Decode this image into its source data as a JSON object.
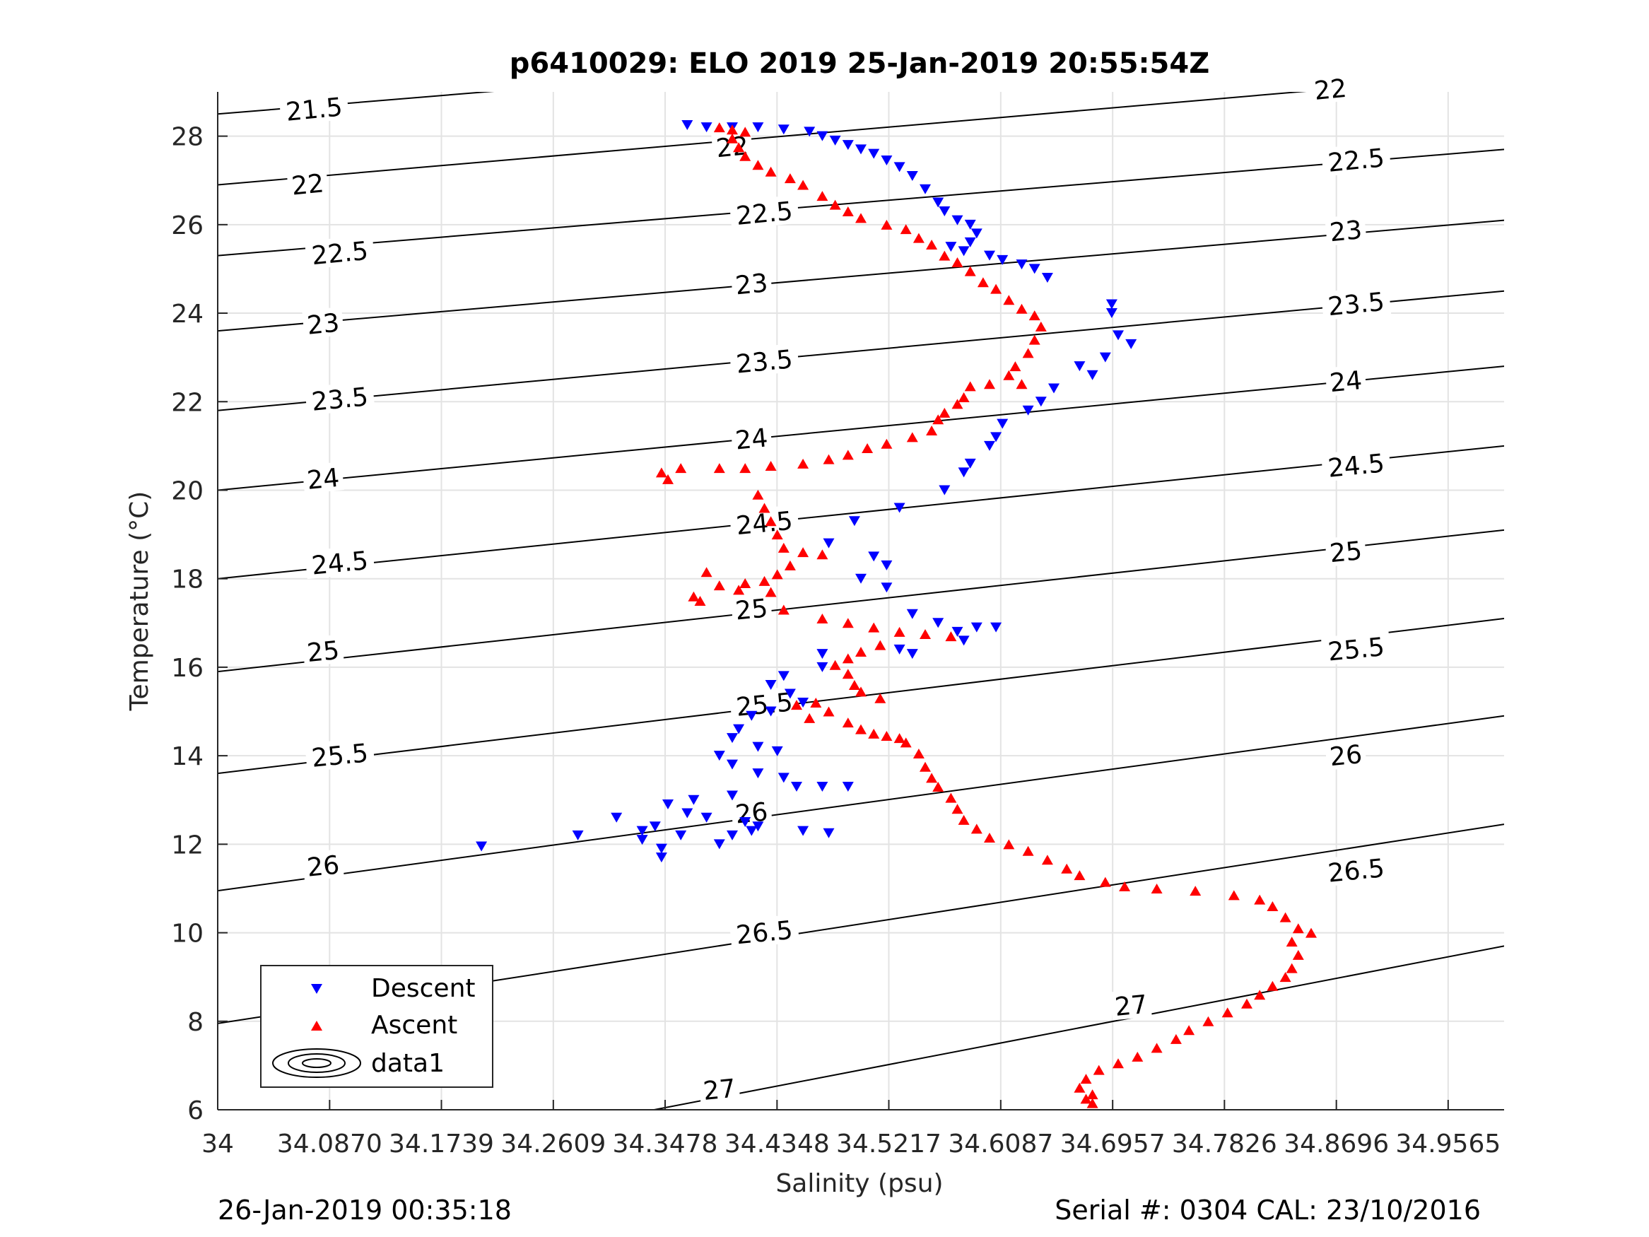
{
  "chart_data": {
    "type": "scatter",
    "title": "p6410029: ELO 2019 25-Jan-2019 20:55:54Z",
    "xlabel": "Salinity (psu)",
    "ylabel": "Temperature (°C)",
    "xlim": [
      34.0,
      35.0
    ],
    "ylim": [
      6,
      29
    ],
    "x_ticks": [
      "34",
      "34.0870",
      "34.1739",
      "34.2609",
      "34.3478",
      "34.4348",
      "34.5217",
      "34.6087",
      "34.6957",
      "34.7826",
      "34.8696",
      "34.9565"
    ],
    "y_ticks": [
      "6",
      "8",
      "10",
      "12",
      "14",
      "16",
      "18",
      "20",
      "22",
      "24",
      "26",
      "28"
    ],
    "grid": true,
    "legend_placement": "bottom-left",
    "density_contours": {
      "name": "data1",
      "levels": [
        "21.5",
        "22",
        "22.5",
        "23",
        "23.5",
        "24",
        "24.5",
        "25",
        "25.5",
        "26",
        "26.5",
        "27"
      ],
      "left_edge_T": [
        28.5,
        26.9,
        25.3,
        23.6,
        21.8,
        20.0,
        18.0,
        15.9,
        13.6,
        10.95,
        7.95,
        4.1
      ],
      "right_edge_T": [
        30.9,
        29.4,
        27.7,
        26.1,
        24.5,
        22.8,
        21.0,
        19.1,
        17.1,
        14.9,
        12.45,
        9.7
      ]
    },
    "series": [
      {
        "name": "Descent",
        "color": "#0000ff",
        "marker": "triangle-down",
        "points": [
          [
            34.365,
            28.25
          ],
          [
            34.38,
            28.2
          ],
          [
            34.4,
            28.2
          ],
          [
            34.42,
            28.2
          ],
          [
            34.44,
            28.15
          ],
          [
            34.46,
            28.1
          ],
          [
            34.47,
            28.0
          ],
          [
            34.48,
            27.9
          ],
          [
            34.49,
            27.8
          ],
          [
            34.5,
            27.7
          ],
          [
            34.51,
            27.6
          ],
          [
            34.52,
            27.45
          ],
          [
            34.53,
            27.3
          ],
          [
            34.54,
            27.1
          ],
          [
            34.55,
            26.8
          ],
          [
            34.56,
            26.5
          ],
          [
            34.565,
            26.3
          ],
          [
            34.575,
            26.1
          ],
          [
            34.585,
            26.0
          ],
          [
            34.59,
            25.8
          ],
          [
            34.585,
            25.6
          ],
          [
            34.57,
            25.5
          ],
          [
            34.58,
            25.4
          ],
          [
            34.6,
            25.3
          ],
          [
            34.61,
            25.2
          ],
          [
            34.625,
            25.1
          ],
          [
            34.635,
            25.0
          ],
          [
            34.645,
            24.8
          ],
          [
            34.695,
            24.2
          ],
          [
            34.695,
            24.0
          ],
          [
            34.7,
            23.5
          ],
          [
            34.71,
            23.3
          ],
          [
            34.69,
            23.0
          ],
          [
            34.67,
            22.8
          ],
          [
            34.68,
            22.6
          ],
          [
            34.65,
            22.3
          ],
          [
            34.64,
            22.0
          ],
          [
            34.63,
            21.8
          ],
          [
            34.61,
            21.5
          ],
          [
            34.605,
            21.2
          ],
          [
            34.6,
            21.0
          ],
          [
            34.585,
            20.6
          ],
          [
            34.58,
            20.4
          ],
          [
            34.565,
            20.0
          ],
          [
            34.53,
            19.6
          ],
          [
            34.495,
            19.3
          ],
          [
            34.475,
            18.8
          ],
          [
            34.51,
            18.5
          ],
          [
            34.52,
            18.3
          ],
          [
            34.5,
            18.0
          ],
          [
            34.52,
            17.8
          ],
          [
            34.54,
            17.2
          ],
          [
            34.56,
            17.0
          ],
          [
            34.575,
            16.8
          ],
          [
            34.58,
            16.6
          ],
          [
            34.59,
            16.9
          ],
          [
            34.605,
            16.9
          ],
          [
            34.53,
            16.4
          ],
          [
            34.54,
            16.3
          ],
          [
            34.47,
            16.3
          ],
          [
            34.47,
            16.0
          ],
          [
            34.44,
            15.8
          ],
          [
            34.43,
            15.6
          ],
          [
            34.445,
            15.4
          ],
          [
            34.455,
            15.2
          ],
          [
            34.43,
            15.0
          ],
          [
            34.415,
            14.9
          ],
          [
            34.405,
            14.6
          ],
          [
            34.4,
            14.4
          ],
          [
            34.42,
            14.2
          ],
          [
            34.435,
            14.1
          ],
          [
            34.39,
            14.0
          ],
          [
            34.4,
            13.8
          ],
          [
            34.42,
            13.6
          ],
          [
            34.44,
            13.5
          ],
          [
            34.45,
            13.3
          ],
          [
            34.47,
            13.3
          ],
          [
            34.49,
            13.3
          ],
          [
            34.4,
            13.1
          ],
          [
            34.37,
            13.0
          ],
          [
            34.35,
            12.9
          ],
          [
            34.365,
            12.7
          ],
          [
            34.38,
            12.6
          ],
          [
            34.41,
            12.5
          ],
          [
            34.34,
            12.4
          ],
          [
            34.33,
            12.3
          ],
          [
            34.31,
            12.6
          ],
          [
            34.36,
            12.2
          ],
          [
            34.4,
            12.2
          ],
          [
            34.42,
            12.4
          ],
          [
            34.39,
            12.0
          ],
          [
            34.415,
            12.3
          ],
          [
            34.455,
            12.3
          ],
          [
            34.475,
            12.25
          ],
          [
            34.33,
            12.1
          ],
          [
            34.345,
            11.9
          ],
          [
            34.345,
            11.7
          ],
          [
            34.28,
            12.2
          ],
          [
            34.205,
            11.95
          ]
        ]
      },
      {
        "name": "Ascent",
        "color": "#ff0000",
        "marker": "triangle-up",
        "points": [
          [
            34.39,
            28.2
          ],
          [
            34.4,
            28.15
          ],
          [
            34.41,
            28.1
          ],
          [
            34.4,
            27.95
          ],
          [
            34.405,
            27.75
          ],
          [
            34.41,
            27.55
          ],
          [
            34.42,
            27.35
          ],
          [
            34.43,
            27.2
          ],
          [
            34.445,
            27.05
          ],
          [
            34.455,
            26.9
          ],
          [
            34.47,
            26.65
          ],
          [
            34.48,
            26.45
          ],
          [
            34.49,
            26.3
          ],
          [
            34.5,
            26.15
          ],
          [
            34.52,
            26.0
          ],
          [
            34.535,
            25.9
          ],
          [
            34.545,
            25.7
          ],
          [
            34.555,
            25.55
          ],
          [
            34.565,
            25.3
          ],
          [
            34.575,
            25.15
          ],
          [
            34.585,
            24.95
          ],
          [
            34.595,
            24.7
          ],
          [
            34.605,
            24.55
          ],
          [
            34.615,
            24.3
          ],
          [
            34.625,
            24.1
          ],
          [
            34.635,
            23.95
          ],
          [
            34.64,
            23.7
          ],
          [
            34.635,
            23.4
          ],
          [
            34.63,
            23.1
          ],
          [
            34.62,
            22.8
          ],
          [
            34.615,
            22.6
          ],
          [
            34.625,
            22.4
          ],
          [
            34.6,
            22.4
          ],
          [
            34.585,
            22.35
          ],
          [
            34.58,
            22.1
          ],
          [
            34.575,
            21.95
          ],
          [
            34.565,
            21.75
          ],
          [
            34.56,
            21.6
          ],
          [
            34.555,
            21.35
          ],
          [
            34.54,
            21.2
          ],
          [
            34.52,
            21.05
          ],
          [
            34.505,
            20.95
          ],
          [
            34.49,
            20.8
          ],
          [
            34.475,
            20.7
          ],
          [
            34.455,
            20.6
          ],
          [
            34.43,
            20.55
          ],
          [
            34.41,
            20.5
          ],
          [
            34.39,
            20.5
          ],
          [
            34.36,
            20.5
          ],
          [
            34.345,
            20.4
          ],
          [
            34.35,
            20.25
          ],
          [
            34.42,
            19.9
          ],
          [
            34.425,
            19.6
          ],
          [
            34.43,
            19.3
          ],
          [
            34.435,
            19.0
          ],
          [
            34.44,
            18.7
          ],
          [
            34.455,
            18.6
          ],
          [
            34.47,
            18.55
          ],
          [
            34.445,
            18.3
          ],
          [
            34.435,
            18.1
          ],
          [
            34.425,
            17.95
          ],
          [
            34.41,
            17.9
          ],
          [
            34.405,
            17.75
          ],
          [
            34.43,
            17.7
          ],
          [
            34.39,
            17.85
          ],
          [
            34.38,
            18.15
          ],
          [
            34.37,
            17.6
          ],
          [
            34.375,
            17.5
          ],
          [
            34.44,
            17.3
          ],
          [
            34.47,
            17.1
          ],
          [
            34.49,
            17.0
          ],
          [
            34.51,
            16.9
          ],
          [
            34.53,
            16.8
          ],
          [
            34.55,
            16.75
          ],
          [
            34.57,
            16.7
          ],
          [
            34.515,
            16.5
          ],
          [
            34.5,
            16.35
          ],
          [
            34.49,
            16.2
          ],
          [
            34.48,
            16.05
          ],
          [
            34.49,
            15.85
          ],
          [
            34.495,
            15.6
          ],
          [
            34.5,
            15.45
          ],
          [
            34.515,
            15.3
          ],
          [
            34.465,
            15.2
          ],
          [
            34.45,
            15.15
          ],
          [
            34.475,
            15.0
          ],
          [
            34.46,
            14.85
          ],
          [
            34.49,
            14.75
          ],
          [
            34.5,
            14.6
          ],
          [
            34.51,
            14.5
          ],
          [
            34.52,
            14.45
          ],
          [
            34.53,
            14.4
          ],
          [
            34.535,
            14.3
          ],
          [
            34.545,
            14.05
          ],
          [
            34.55,
            13.75
          ],
          [
            34.555,
            13.5
          ],
          [
            34.56,
            13.3
          ],
          [
            34.57,
            13.05
          ],
          [
            34.575,
            12.8
          ],
          [
            34.58,
            12.55
          ],
          [
            34.59,
            12.35
          ],
          [
            34.6,
            12.15
          ],
          [
            34.615,
            12.0
          ],
          [
            34.63,
            11.85
          ],
          [
            34.645,
            11.65
          ],
          [
            34.66,
            11.45
          ],
          [
            34.67,
            11.3
          ],
          [
            34.69,
            11.15
          ],
          [
            34.705,
            11.05
          ],
          [
            34.73,
            11.0
          ],
          [
            34.76,
            10.95
          ],
          [
            34.79,
            10.85
          ],
          [
            34.81,
            10.75
          ],
          [
            34.82,
            10.6
          ],
          [
            34.83,
            10.35
          ],
          [
            34.84,
            10.1
          ],
          [
            34.85,
            10.0
          ],
          [
            34.835,
            9.8
          ],
          [
            34.84,
            9.5
          ],
          [
            34.835,
            9.2
          ],
          [
            34.83,
            9.0
          ],
          [
            34.82,
            8.8
          ],
          [
            34.81,
            8.6
          ],
          [
            34.8,
            8.4
          ],
          [
            34.785,
            8.2
          ],
          [
            34.77,
            8.0
          ],
          [
            34.755,
            7.8
          ],
          [
            34.745,
            7.6
          ],
          [
            34.73,
            7.4
          ],
          [
            34.715,
            7.2
          ],
          [
            34.7,
            7.05
          ],
          [
            34.685,
            6.9
          ],
          [
            34.675,
            6.7
          ],
          [
            34.67,
            6.5
          ],
          [
            34.68,
            6.35
          ],
          [
            34.675,
            6.25
          ],
          [
            34.68,
            6.15
          ]
        ]
      }
    ],
    "contour_labels": [
      {
        "text": "21.5",
        "s": 34.075,
        "t": 28.6
      },
      {
        "text": "22",
        "s": 34.07,
        "t": 26.9
      },
      {
        "text": "22",
        "s": 34.4,
        "t": 27.75
      },
      {
        "text": "22",
        "s": 34.865,
        "t": 29.05
      },
      {
        "text": "22.5",
        "s": 34.095,
        "t": 25.35
      },
      {
        "text": "22.5",
        "s": 34.425,
        "t": 26.25
      },
      {
        "text": "22.5",
        "s": 34.885,
        "t": 27.45
      },
      {
        "text": "23",
        "s": 34.082,
        "t": 23.75
      },
      {
        "text": "23",
        "s": 34.415,
        "t": 24.65
      },
      {
        "text": "23",
        "s": 34.877,
        "t": 25.85
      },
      {
        "text": "23.5",
        "s": 34.095,
        "t": 22.05
      },
      {
        "text": "23.5",
        "s": 34.425,
        "t": 22.9
      },
      {
        "text": "23.5",
        "s": 34.885,
        "t": 24.2
      },
      {
        "text": "24",
        "s": 34.082,
        "t": 20.25
      },
      {
        "text": "24",
        "s": 34.415,
        "t": 21.15
      },
      {
        "text": "24",
        "s": 34.877,
        "t": 22.45
      },
      {
        "text": "24.5",
        "s": 34.095,
        "t": 18.35
      },
      {
        "text": "24.5",
        "s": 34.425,
        "t": 19.25
      },
      {
        "text": "24.5",
        "s": 34.885,
        "t": 20.55
      },
      {
        "text": "25",
        "s": 34.082,
        "t": 16.35
      },
      {
        "text": "25",
        "s": 34.415,
        "t": 17.3
      },
      {
        "text": "25",
        "s": 34.877,
        "t": 18.6
      },
      {
        "text": "25.5",
        "s": 34.095,
        "t": 14.0
      },
      {
        "text": "25.5",
        "s": 34.425,
        "t": 15.15
      },
      {
        "text": "25.5",
        "s": 34.885,
        "t": 16.4
      },
      {
        "text": "26",
        "s": 34.082,
        "t": 11.5
      },
      {
        "text": "26",
        "s": 34.415,
        "t": 12.7
      },
      {
        "text": "26",
        "s": 34.877,
        "t": 14.0
      },
      {
        "text": "26.5",
        "s": 34.095,
        "t": 8.5
      },
      {
        "text": "26.5",
        "s": 34.425,
        "t": 10.0
      },
      {
        "text": "26.5",
        "s": 34.885,
        "t": 11.4
      },
      {
        "text": "27",
        "s": 34.39,
        "t": 6.45
      },
      {
        "text": "27",
        "s": 34.71,
        "t": 8.35
      }
    ]
  },
  "footer": {
    "left": "26-Jan-2019 00:35:18",
    "right": "Serial #: 0304  CAL: 23/10/2016"
  }
}
